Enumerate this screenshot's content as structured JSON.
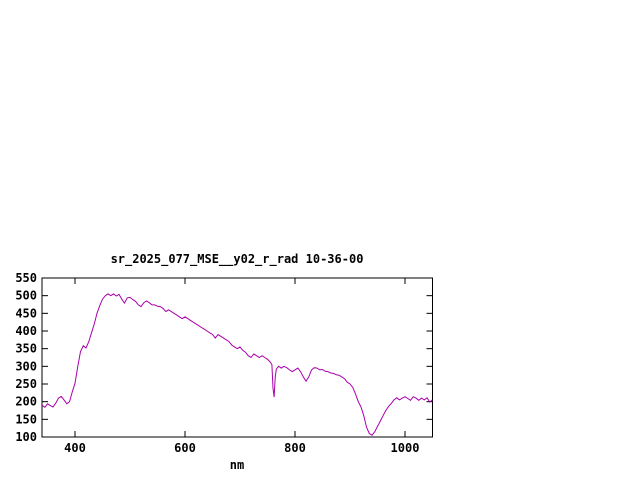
{
  "window": {
    "background": "#ffffff"
  },
  "chart_data": {
    "type": "line",
    "title": "sr_2025_077_MSE__y02_r_rad 10-36-00",
    "xlabel": "nm",
    "ylabel": "",
    "xlim": [
      340,
      1050
    ],
    "ylim": [
      100,
      550
    ],
    "xticks": [
      400,
      600,
      800,
      1000
    ],
    "yticks": [
      100,
      150,
      200,
      250,
      300,
      350,
      400,
      450,
      500,
      550
    ],
    "grid": false,
    "legend_position": "none",
    "line_color": "#aa00aa",
    "axis_color": "#000000",
    "series": [
      {
        "name": "sr_2025_077_MSE__y02_r_rad",
        "points": [
          [
            340,
            190
          ],
          [
            345,
            184
          ],
          [
            350,
            194
          ],
          [
            355,
            189
          ],
          [
            360,
            185
          ],
          [
            365,
            196
          ],
          [
            370,
            210
          ],
          [
            375,
            215
          ],
          [
            380,
            205
          ],
          [
            385,
            194
          ],
          [
            390,
            200
          ],
          [
            395,
            228
          ],
          [
            400,
            252
          ],
          [
            405,
            300
          ],
          [
            410,
            342
          ],
          [
            415,
            358
          ],
          [
            420,
            352
          ],
          [
            425,
            370
          ],
          [
            430,
            395
          ],
          [
            435,
            420
          ],
          [
            440,
            450
          ],
          [
            445,
            472
          ],
          [
            450,
            490
          ],
          [
            455,
            500
          ],
          [
            460,
            505
          ],
          [
            465,
            500
          ],
          [
            470,
            505
          ],
          [
            475,
            499
          ],
          [
            480,
            504
          ],
          [
            485,
            490
          ],
          [
            490,
            479
          ],
          [
            495,
            494
          ],
          [
            500,
            495
          ],
          [
            505,
            489
          ],
          [
            510,
            484
          ],
          [
            515,
            474
          ],
          [
            520,
            469
          ],
          [
            525,
            480
          ],
          [
            530,
            485
          ],
          [
            535,
            480
          ],
          [
            540,
            474
          ],
          [
            545,
            474
          ],
          [
            550,
            470
          ],
          [
            555,
            469
          ],
          [
            560,
            464
          ],
          [
            565,
            455
          ],
          [
            570,
            460
          ],
          [
            575,
            455
          ],
          [
            580,
            450
          ],
          [
            585,
            445
          ],
          [
            590,
            440
          ],
          [
            595,
            435
          ],
          [
            600,
            440
          ],
          [
            605,
            435
          ],
          [
            610,
            430
          ],
          [
            615,
            425
          ],
          [
            620,
            420
          ],
          [
            625,
            415
          ],
          [
            630,
            410
          ],
          [
            635,
            405
          ],
          [
            640,
            400
          ],
          [
            645,
            395
          ],
          [
            650,
            390
          ],
          [
            655,
            380
          ],
          [
            660,
            390
          ],
          [
            665,
            385
          ],
          [
            670,
            380
          ],
          [
            675,
            375
          ],
          [
            680,
            370
          ],
          [
            685,
            360
          ],
          [
            690,
            355
          ],
          [
            695,
            350
          ],
          [
            700,
            355
          ],
          [
            705,
            345
          ],
          [
            710,
            340
          ],
          [
            715,
            330
          ],
          [
            720,
            325
          ],
          [
            725,
            335
          ],
          [
            730,
            330
          ],
          [
            735,
            325
          ],
          [
            740,
            330
          ],
          [
            745,
            325
          ],
          [
            750,
            320
          ],
          [
            755,
            312
          ],
          [
            758,
            305
          ],
          [
            760,
            238
          ],
          [
            762,
            213
          ],
          [
            764,
            268
          ],
          [
            766,
            292
          ],
          [
            770,
            300
          ],
          [
            775,
            295
          ],
          [
            780,
            300
          ],
          [
            785,
            296
          ],
          [
            790,
            290
          ],
          [
            795,
            285
          ],
          [
            800,
            290
          ],
          [
            805,
            295
          ],
          [
            810,
            285
          ],
          [
            815,
            270
          ],
          [
            820,
            258
          ],
          [
            825,
            270
          ],
          [
            830,
            290
          ],
          [
            835,
            296
          ],
          [
            840,
            295
          ],
          [
            845,
            290
          ],
          [
            850,
            291
          ],
          [
            855,
            286
          ],
          [
            860,
            285
          ],
          [
            865,
            281
          ],
          [
            870,
            280
          ],
          [
            875,
            276
          ],
          [
            880,
            275
          ],
          [
            885,
            270
          ],
          [
            890,
            265
          ],
          [
            895,
            255
          ],
          [
            900,
            250
          ],
          [
            905,
            240
          ],
          [
            910,
            222
          ],
          [
            915,
            200
          ],
          [
            920,
            185
          ],
          [
            925,
            160
          ],
          [
            930,
            128
          ],
          [
            935,
            110
          ],
          [
            940,
            105
          ],
          [
            945,
            115
          ],
          [
            950,
            130
          ],
          [
            955,
            145
          ],
          [
            960,
            160
          ],
          [
            965,
            175
          ],
          [
            970,
            186
          ],
          [
            975,
            195
          ],
          [
            980,
            205
          ],
          [
            985,
            211
          ],
          [
            990,
            205
          ],
          [
            995,
            210
          ],
          [
            1000,
            214
          ],
          [
            1005,
            209
          ],
          [
            1010,
            204
          ],
          [
            1015,
            214
          ],
          [
            1020,
            210
          ],
          [
            1025,
            204
          ],
          [
            1030,
            210
          ],
          [
            1035,
            205
          ],
          [
            1040,
            211
          ],
          [
            1045,
            199
          ],
          [
            1050,
            205
          ]
        ]
      }
    ]
  }
}
